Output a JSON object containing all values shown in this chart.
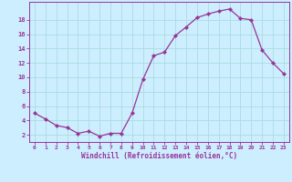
{
  "x": [
    0,
    1,
    2,
    3,
    4,
    5,
    6,
    7,
    8,
    9,
    10,
    11,
    12,
    13,
    14,
    15,
    16,
    17,
    18,
    19,
    20,
    21,
    22,
    23
  ],
  "y": [
    5.0,
    4.2,
    3.3,
    3.0,
    2.2,
    2.5,
    1.8,
    2.2,
    2.2,
    5.0,
    9.7,
    13.0,
    13.5,
    15.8,
    17.0,
    18.3,
    18.8,
    19.2,
    19.5,
    18.2,
    18.0,
    13.8,
    12.0,
    10.5
  ],
  "line_color": "#993399",
  "marker": "D",
  "marker_size": 2.2,
  "bg_color": "#cceeff",
  "grid_color": "#aadddd",
  "xlabel": "Windchill (Refroidissement éolien,°C)",
  "xlabel_color": "#993399",
  "tick_color": "#993399",
  "ylabel_ticks": [
    2,
    4,
    6,
    8,
    10,
    12,
    14,
    16,
    18
  ],
  "xlim": [
    -0.5,
    23.5
  ],
  "ylim": [
    1.0,
    20.5
  ]
}
